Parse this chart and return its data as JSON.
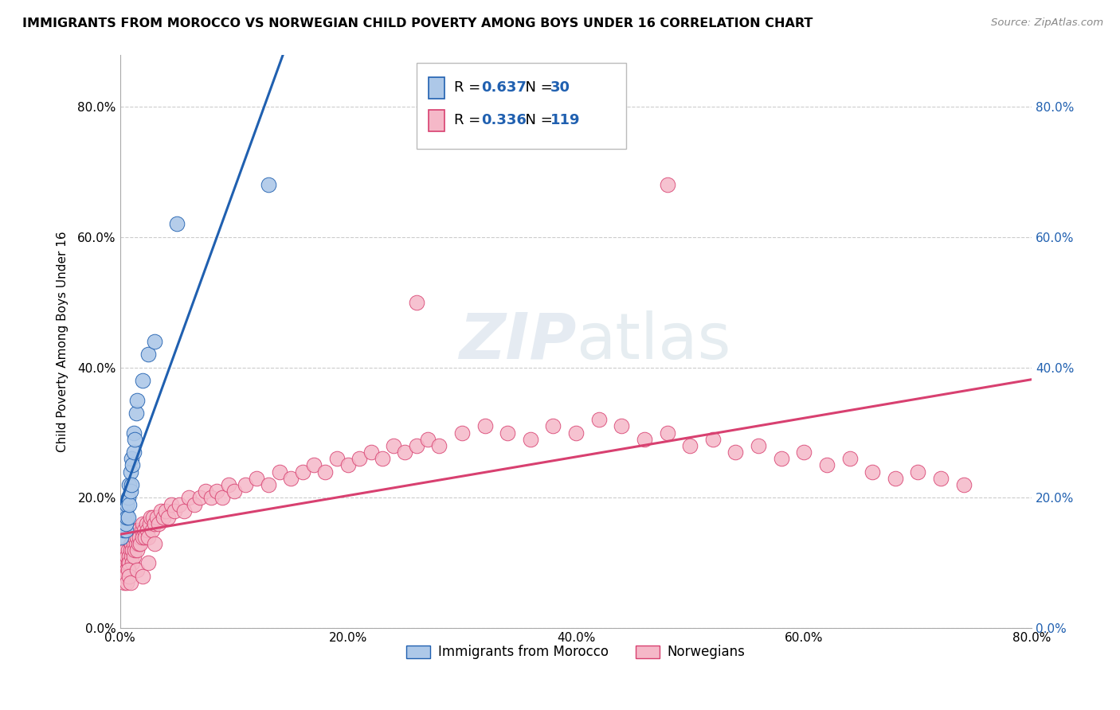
{
  "title": "IMMIGRANTS FROM MOROCCO VS NORWEGIAN CHILD POVERTY AMONG BOYS UNDER 16 CORRELATION CHART",
  "source": "Source: ZipAtlas.com",
  "ylabel": "Child Poverty Among Boys Under 16",
  "xlim": [
    0.0,
    0.8
  ],
  "ylim": [
    0.05,
    0.88
  ],
  "x_ticks": [
    0.0,
    0.2,
    0.4,
    0.6,
    0.8
  ],
  "x_tick_labels": [
    "0.0%",
    "20.0%",
    "40.0%",
    "60.0%",
    "80.0%"
  ],
  "y_ticks": [
    0.0,
    0.2,
    0.4,
    0.6,
    0.8
  ],
  "y_tick_labels": [
    "0.0%",
    "20.0%",
    "40.0%",
    "60.0%",
    "80.0%"
  ],
  "blue_R": "0.637",
  "blue_N": "30",
  "pink_R": "0.336",
  "pink_N": "119",
  "blue_color": "#adc8e8",
  "pink_color": "#f5b8c8",
  "blue_line_color": "#2060b0",
  "pink_line_color": "#d84070",
  "legend_blue_label": "Immigrants from Morocco",
  "legend_pink_label": "Norwegians",
  "blue_scatter_x": [
    0.001,
    0.002,
    0.003,
    0.003,
    0.004,
    0.004,
    0.005,
    0.005,
    0.005,
    0.006,
    0.006,
    0.007,
    0.007,
    0.008,
    0.008,
    0.009,
    0.009,
    0.01,
    0.01,
    0.011,
    0.012,
    0.012,
    0.013,
    0.014,
    0.015,
    0.02,
    0.025,
    0.03,
    0.05,
    0.13
  ],
  "blue_scatter_y": [
    0.14,
    0.16,
    0.17,
    0.15,
    0.17,
    0.18,
    0.15,
    0.16,
    0.18,
    0.17,
    0.19,
    0.17,
    0.2,
    0.19,
    0.22,
    0.21,
    0.24,
    0.22,
    0.26,
    0.25,
    0.27,
    0.3,
    0.29,
    0.33,
    0.35,
    0.38,
    0.42,
    0.44,
    0.62,
    0.68
  ],
  "pink_scatter_x": [
    0.001,
    0.002,
    0.002,
    0.003,
    0.003,
    0.004,
    0.004,
    0.005,
    0.005,
    0.006,
    0.006,
    0.007,
    0.007,
    0.008,
    0.008,
    0.009,
    0.009,
    0.01,
    0.01,
    0.011,
    0.011,
    0.012,
    0.012,
    0.013,
    0.013,
    0.014,
    0.014,
    0.015,
    0.015,
    0.016,
    0.016,
    0.017,
    0.018,
    0.019,
    0.02,
    0.02,
    0.021,
    0.022,
    0.023,
    0.024,
    0.025,
    0.026,
    0.027,
    0.028,
    0.029,
    0.03,
    0.032,
    0.034,
    0.036,
    0.038,
    0.04,
    0.042,
    0.045,
    0.048,
    0.052,
    0.056,
    0.06,
    0.065,
    0.07,
    0.075,
    0.08,
    0.085,
    0.09,
    0.095,
    0.1,
    0.11,
    0.12,
    0.13,
    0.14,
    0.15,
    0.16,
    0.17,
    0.18,
    0.19,
    0.2,
    0.21,
    0.22,
    0.23,
    0.24,
    0.25,
    0.26,
    0.27,
    0.28,
    0.3,
    0.32,
    0.34,
    0.36,
    0.38,
    0.4,
    0.42,
    0.44,
    0.46,
    0.48,
    0.5,
    0.52,
    0.54,
    0.56,
    0.58,
    0.6,
    0.62,
    0.64,
    0.66,
    0.68,
    0.7,
    0.72,
    0.74,
    0.003,
    0.004,
    0.005,
    0.006,
    0.007,
    0.008,
    0.009,
    0.015,
    0.02,
    0.025,
    0.03,
    0.26,
    0.48
  ],
  "pink_scatter_y": [
    0.1,
    0.09,
    0.11,
    0.1,
    0.12,
    0.09,
    0.11,
    0.1,
    0.12,
    0.09,
    0.11,
    0.1,
    0.12,
    0.11,
    0.1,
    0.13,
    0.12,
    0.11,
    0.13,
    0.12,
    0.1,
    0.11,
    0.13,
    0.12,
    0.14,
    0.13,
    0.15,
    0.12,
    0.14,
    0.13,
    0.15,
    0.14,
    0.13,
    0.15,
    0.14,
    0.16,
    0.15,
    0.14,
    0.16,
    0.15,
    0.14,
    0.16,
    0.17,
    0.15,
    0.17,
    0.16,
    0.17,
    0.16,
    0.18,
    0.17,
    0.18,
    0.17,
    0.19,
    0.18,
    0.19,
    0.18,
    0.2,
    0.19,
    0.2,
    0.21,
    0.2,
    0.21,
    0.2,
    0.22,
    0.21,
    0.22,
    0.23,
    0.22,
    0.24,
    0.23,
    0.24,
    0.25,
    0.24,
    0.26,
    0.25,
    0.26,
    0.27,
    0.26,
    0.28,
    0.27,
    0.28,
    0.29,
    0.28,
    0.3,
    0.31,
    0.3,
    0.29,
    0.31,
    0.3,
    0.32,
    0.31,
    0.29,
    0.3,
    0.28,
    0.29,
    0.27,
    0.28,
    0.26,
    0.27,
    0.25,
    0.26,
    0.24,
    0.23,
    0.24,
    0.23,
    0.22,
    0.08,
    0.07,
    0.08,
    0.07,
    0.09,
    0.08,
    0.07,
    0.09,
    0.08,
    0.1,
    0.13,
    0.5,
    0.68
  ]
}
